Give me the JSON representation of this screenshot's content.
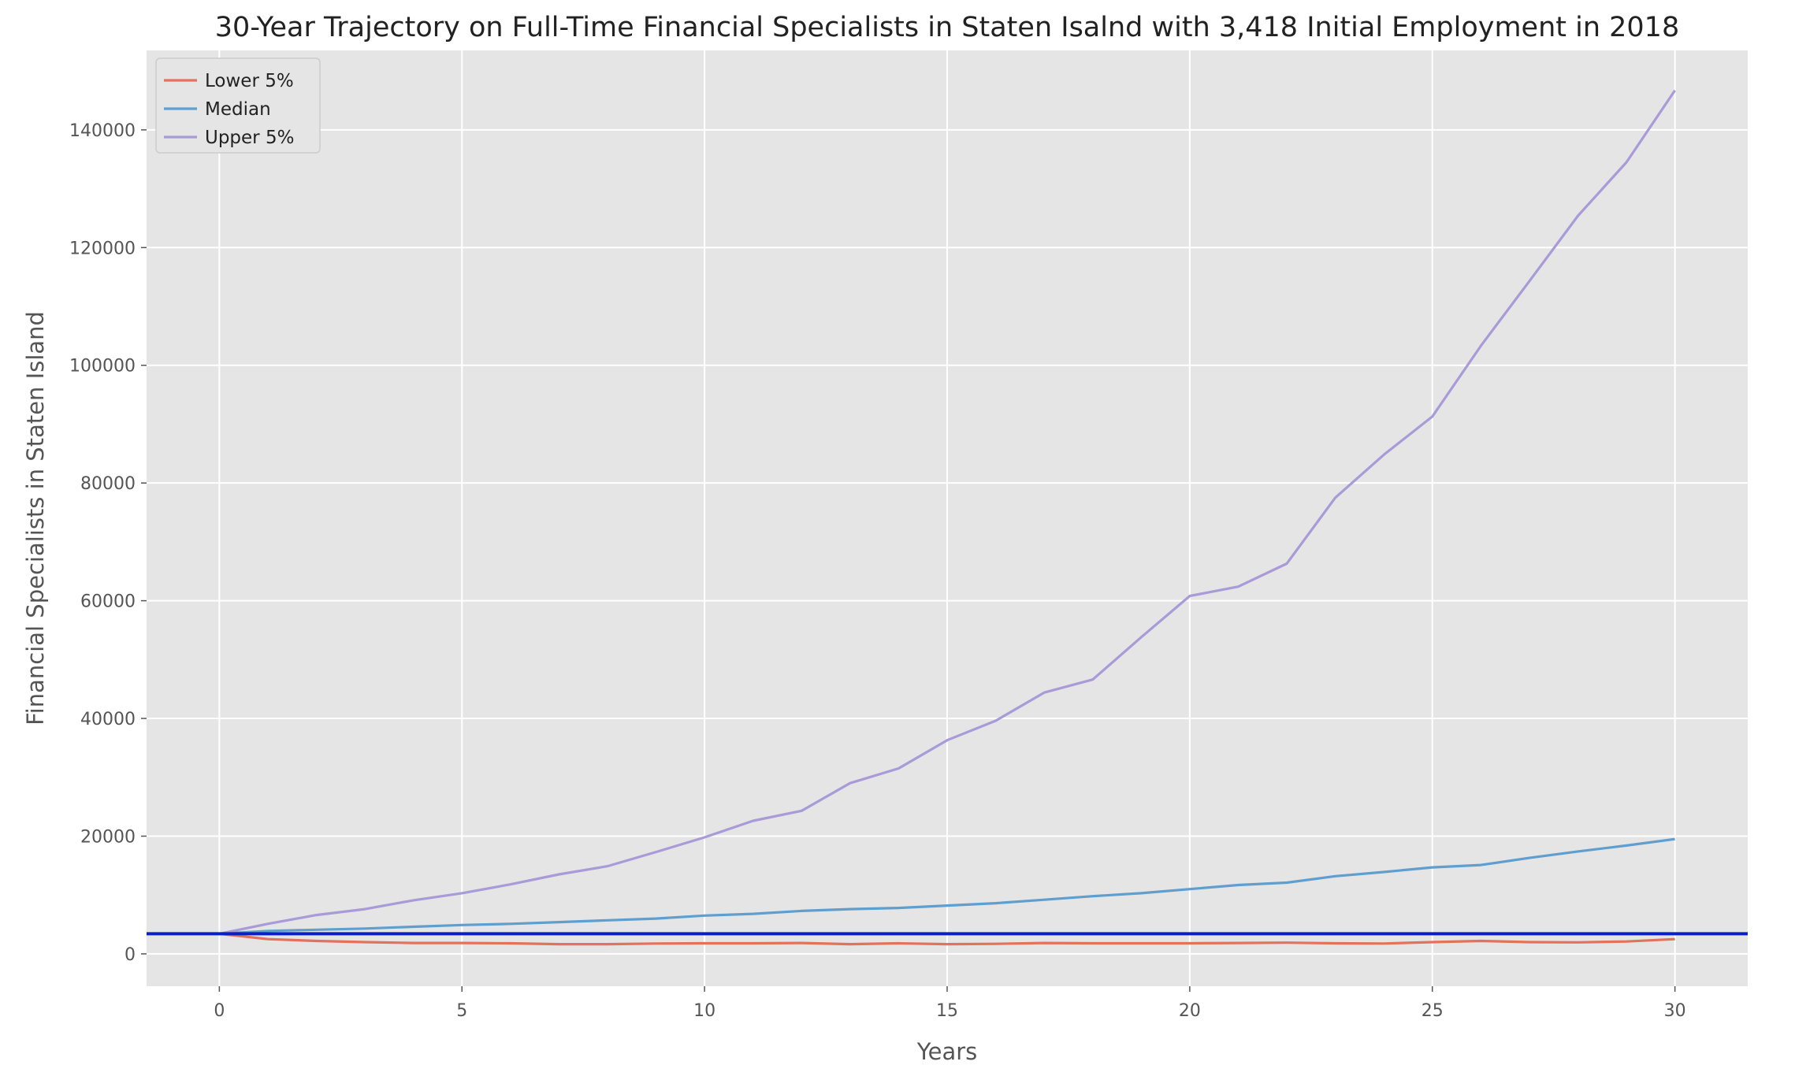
{
  "chart_data": {
    "type": "line",
    "title": "30-Year Trajectory on Full-Time Financial Specialists in Staten Isalnd with 3,418 Initial Employment in 2018",
    "xlabel": "Years",
    "ylabel": "Financial Specialists in Staten Island",
    "xlim": [
      -1.5,
      31.5
    ],
    "ylim": [
      -5500,
      153500
    ],
    "xticks": [
      0,
      5,
      10,
      15,
      20,
      25,
      30
    ],
    "yticks": [
      0,
      20000,
      40000,
      60000,
      80000,
      100000,
      120000,
      140000
    ],
    "grid": true,
    "legend_position": "top-left",
    "background": "#e5e5e5",
    "x": [
      0,
      1,
      2,
      3,
      4,
      5,
      6,
      7,
      8,
      9,
      10,
      11,
      12,
      13,
      14,
      15,
      16,
      17,
      18,
      19,
      20,
      21,
      22,
      23,
      24,
      25,
      26,
      27,
      28,
      29,
      30
    ],
    "series": [
      {
        "name": "Lower 5%",
        "color": "#e2725b",
        "values": [
          3418,
          2500,
          2200,
          2000,
          1850,
          1850,
          1800,
          1650,
          1650,
          1750,
          1800,
          1800,
          1850,
          1650,
          1800,
          1650,
          1700,
          1850,
          1800,
          1800,
          1800,
          1850,
          1900,
          1800,
          1750,
          2000,
          2200,
          2000,
          1950,
          2100,
          2500
        ]
      },
      {
        "name": "Median",
        "color": "#5f9fcf",
        "values": [
          3418,
          3900,
          4100,
          4300,
          4600,
          4900,
          5100,
          5400,
          5700,
          6000,
          6500,
          6800,
          7300,
          7600,
          7800,
          8200,
          8600,
          9200,
          9800,
          10300,
          11000,
          11700,
          12100,
          13200,
          13900,
          14700,
          15100,
          16300,
          17400,
          18400,
          19500
        ]
      },
      {
        "name": "Upper 5%",
        "color": "#a99ad8",
        "values": [
          3418,
          5100,
          6600,
          7600,
          9100,
          10300,
          11800,
          13500,
          14900,
          17300,
          19800,
          22600,
          24300,
          29000,
          31500,
          36300,
          39600,
          44400,
          46600,
          53800,
          60800,
          62400,
          66300,
          77500,
          84800,
          91300,
          103300,
          114300,
          125400,
          134500,
          146700
        ]
      }
    ],
    "reference_line": {
      "y": 3418,
      "color": "#0a1fbf"
    }
  }
}
